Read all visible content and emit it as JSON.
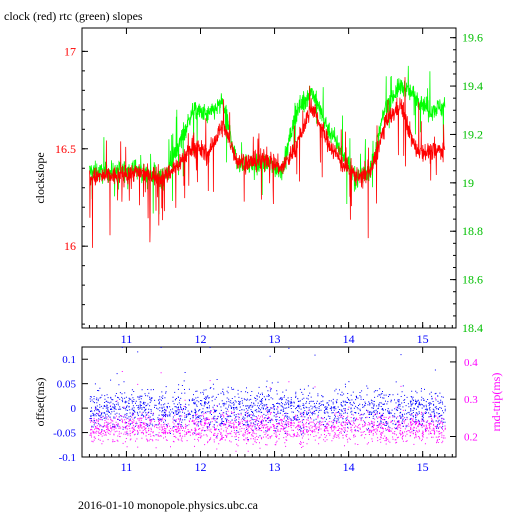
{
  "chart_data": [
    {
      "type": "line",
      "title": "clock (red) rtc (green) slopes",
      "xlabel": "",
      "ylabel": "clockslope",
      "xlim": [
        10.4,
        15.45
      ],
      "ylim": [
        15.58,
        17.12
      ],
      "y2lim": [
        18.4,
        19.64
      ],
      "x_ticks": [
        "11",
        "12",
        "13",
        "14",
        "15"
      ],
      "y_ticks": [
        "16",
        "16.5",
        "17"
      ],
      "y2_ticks": [
        "18.4",
        "18.6",
        "18.8",
        "19",
        "19.2",
        "19.4",
        "19.6"
      ],
      "colors": {
        "clock": "#ff0000",
        "rtc": "#00ff00",
        "left_axis": "#ff0000",
        "right_axis": "#00c000"
      },
      "series": [
        {
          "name": "clock",
          "axis": "left",
          "x": [
            10.5,
            10.7,
            10.9,
            11.1,
            11.3,
            11.5,
            11.7,
            11.9,
            12.1,
            12.3,
            12.5,
            12.7,
            12.9,
            13.1,
            13.3,
            13.5,
            13.7,
            13.9,
            14.1,
            14.3,
            14.5,
            14.7,
            14.9,
            15.1,
            15.3
          ],
          "y": [
            16.35,
            16.36,
            16.36,
            16.38,
            16.37,
            16.35,
            16.42,
            16.52,
            16.47,
            16.62,
            16.44,
            16.43,
            16.45,
            16.4,
            16.52,
            16.72,
            16.55,
            16.43,
            16.36,
            16.38,
            16.63,
            16.73,
            16.5,
            16.48,
            16.5
          ]
        },
        {
          "name": "rtc",
          "axis": "right",
          "x": [
            10.5,
            10.7,
            10.9,
            11.1,
            11.3,
            11.5,
            11.7,
            11.9,
            12.1,
            12.3,
            12.5,
            12.7,
            12.9,
            13.1,
            13.3,
            13.5,
            13.7,
            13.9,
            14.1,
            14.3,
            14.5,
            14.7,
            14.9,
            15.1,
            15.3
          ],
          "y": [
            19.05,
            19.04,
            19.05,
            19.06,
            19.03,
            19.02,
            19.15,
            19.3,
            19.28,
            19.33,
            19.08,
            19.08,
            19.08,
            19.05,
            19.3,
            19.38,
            19.24,
            19.13,
            19.02,
            19.05,
            19.32,
            19.4,
            19.36,
            19.3,
            19.32
          ]
        }
      ]
    },
    {
      "type": "scatter",
      "xlabel": "",
      "ylabel": "offset(ms)",
      "y2label": "rnd-trip(ms)",
      "xlim": [
        10.4,
        15.45
      ],
      "ylim": [
        -0.1,
        0.125
      ],
      "y2lim": [
        0.145,
        0.44
      ],
      "x_ticks": [
        "11",
        "12",
        "13",
        "14",
        "15"
      ],
      "y_ticks": [
        "-0.1",
        "-0.05",
        "0",
        "0.05",
        "0.1"
      ],
      "y2_ticks": [
        "0.2",
        "0.3",
        "0.4"
      ],
      "colors": {
        "offset": "#0000ff",
        "roundtrip": "#ff00ff",
        "left_axis": "#0000ff",
        "right_axis": "#ff00ff"
      },
      "series": [
        {
          "name": "offset",
          "axis": "left",
          "x_range": [
            10.5,
            15.3
          ],
          "center": 0.0,
          "spread": 0.02
        },
        {
          "name": "rnd-trip",
          "axis": "right",
          "x_range": [
            10.5,
            15.3
          ],
          "center": 0.225,
          "spread": 0.02
        }
      ]
    }
  ],
  "footer": "2016-01-10  monopole.physics.ubc.ca"
}
